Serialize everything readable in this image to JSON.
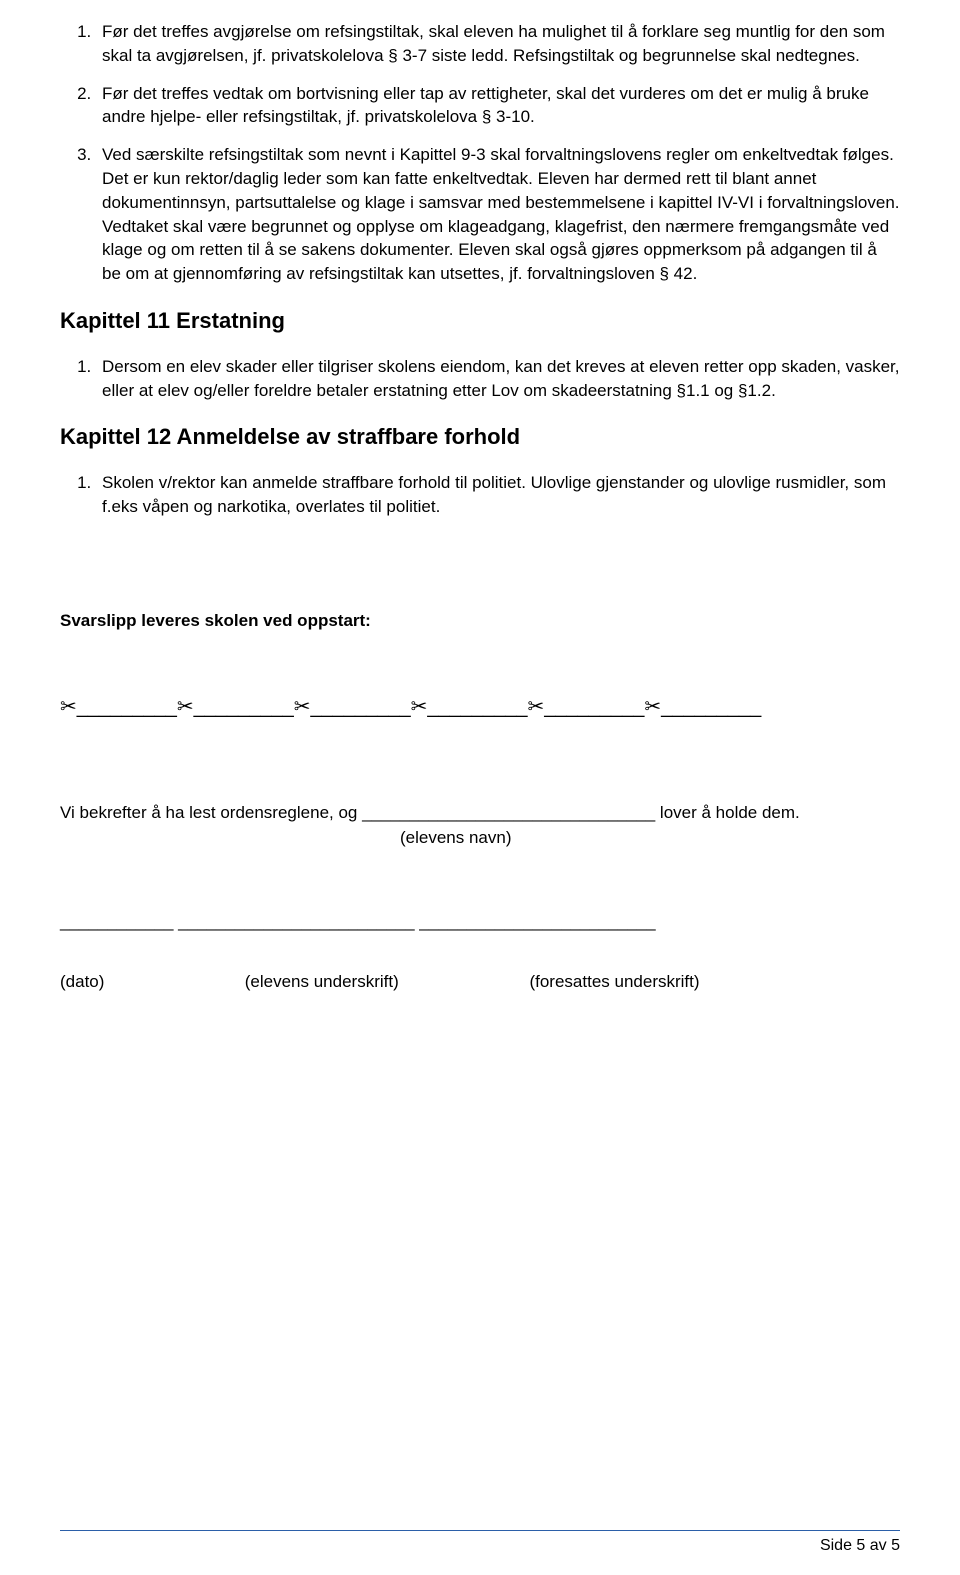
{
  "list1": {
    "item1": "Før det treffes avgjørelse om refsingstiltak, skal eleven ha mulighet til å forklare seg muntlig for den som skal ta avgjørelsen, jf. privatskolelova § 3-7 siste ledd. Refsingstiltak og begrunnelse skal nedtegnes.",
    "item2": "Før det treffes vedtak om bortvisning eller tap av rettigheter, skal det vurderes om det er mulig å bruke andre hjelpe- eller refsingstiltak, jf. privatskolelova § 3-10.",
    "item3": "Ved særskilte refsingstiltak som nevnt i Kapittel 9-3 skal forvaltningslovens regler om enkeltvedtak følges. Det er kun rektor/daglig leder som kan fatte enkeltvedtak. Eleven har dermed rett til blant annet dokumentinnsyn, partsuttalelse og klage i samsvar med bestemmelsene i kapittel IV-VI i forvaltningsloven. Vedtaket skal være begrunnet og opplyse om klageadgang, klagefrist, den nærmere fremgangsmåte ved klage og om retten til å se sakens dokumenter. Eleven skal også gjøres oppmerksom på adgangen til å be om at gjennomføring av refsingstiltak kan utsettes, jf. forvaltningsloven § 42."
  },
  "chapter11": {
    "title": "Kapittel 11 Erstatning",
    "item1": "Dersom en elev skader eller tilgriser skolens eiendom, kan det kreves at eleven retter opp skaden, vasker, eller at elev og/eller foreldre betaler erstatning etter Lov om skadeerstatning §1.1 og §1.2."
  },
  "chapter12": {
    "title": "Kapittel 12 Anmeldelse av straffbare forhold",
    "item1": "Skolen v/rektor kan anmelde straffbare forhold til politiet. Ulovlige gjenstander og ulovlige rusmidler, som f.eks våpen og narkotika, overlates til politiet."
  },
  "slip": {
    "heading": "Svarslipp leveres skolen ved oppstart:",
    "scissor_segment": "✂_________",
    "confirm_line": "Vi bekrefter å ha lest ordensreglene, og _______________________________ lover å holde dem.",
    "confirm_label": "(elevens navn)",
    "sig_line": "____________       _________________________      _________________________",
    "sig_date": "(dato)",
    "sig_student": "(elevens underskrift)",
    "sig_guardian": "(foresattes underskrift)"
  },
  "footer": {
    "text": "Side 5 av 5"
  }
}
